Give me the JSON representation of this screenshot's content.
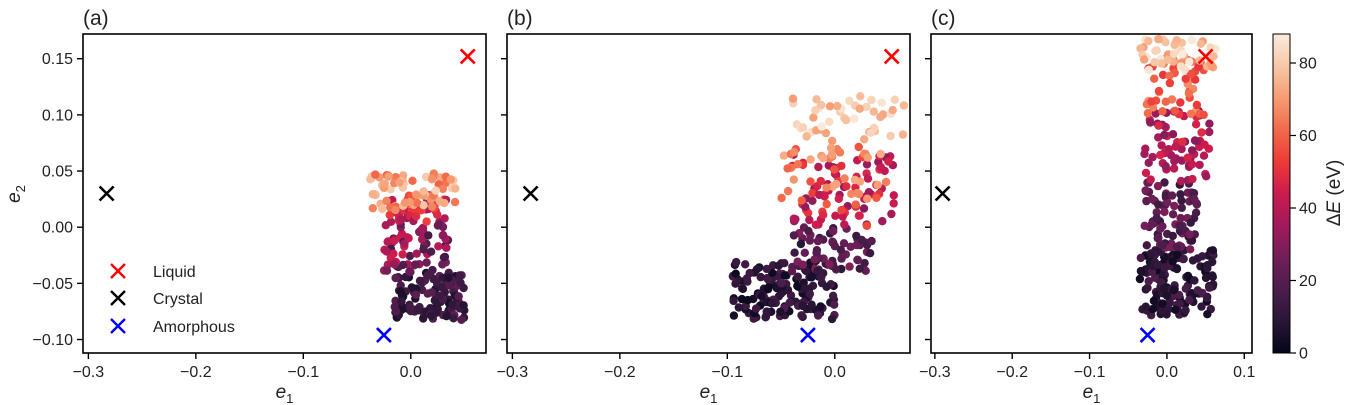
{
  "figure": {
    "colorbar": {
      "label": "ΔE (eV)",
      "label_symbol": "Δ",
      "label_italic": "E",
      "label_unit": " (eV)",
      "range": [
        0,
        88
      ],
      "ticks": [
        "0",
        "20",
        "40",
        "60",
        "80"
      ],
      "tick_values": [
        0,
        20,
        40,
        60,
        80
      ],
      "colormap": "rocket",
      "stops": [
        "#03051a",
        "#2a1636",
        "#4c1d4b",
        "#711f57",
        "#a11a5b",
        "#cb1b4f",
        "#ed3b37",
        "#f26a4a",
        "#f69c73",
        "#f7c8a8",
        "#faebdd"
      ]
    },
    "legend": [
      {
        "label": "Liquid",
        "color": "#ff0000"
      },
      {
        "label": "Crystal",
        "color": "#000000"
      },
      {
        "label": "Amorphous",
        "color": "#0000ff"
      }
    ]
  },
  "chart_data": [
    {
      "type": "scatter",
      "panel_label": "(a)",
      "xlabel": "e₁",
      "xlabel_main": "e",
      "xlabel_sub": "1",
      "ylabel": "e₂",
      "ylabel_main": "e",
      "ylabel_sub": "2",
      "xlim": [
        -0.305,
        0.07
      ],
      "ylim": [
        -0.112,
        0.172
      ],
      "xticks": [
        -0.3,
        -0.2,
        -0.1,
        0.0
      ],
      "xtick_labels": [
        "−0.3",
        "−0.2",
        "−0.1",
        "0.0"
      ],
      "yticks": [
        -0.1,
        -0.05,
        0.0,
        0.05,
        0.1,
        0.15
      ],
      "ytick_labels": [
        "−0.10",
        "−0.05",
        "0.00",
        "0.05",
        "0.10",
        "0.15"
      ],
      "grid": false,
      "markers": [
        {
          "name": "Liquid",
          "x": 0.053,
          "y": 0.152,
          "color": "#ff0000"
        },
        {
          "name": "Crystal",
          "x": -0.283,
          "y": 0.03,
          "color": "#000000"
        },
        {
          "name": "Amorphous",
          "x": -0.025,
          "y": -0.096,
          "color": "#0000ff"
        }
      ],
      "clusters": [
        {
          "x": [
            -0.015,
            0.05
          ],
          "y": [
            -0.083,
            -0.04
          ],
          "dE": [
            5,
            22
          ],
          "n": 110
        },
        {
          "x": [
            -0.025,
            0.035
          ],
          "y": [
            -0.04,
            0.005
          ],
          "dE": [
            15,
            45
          ],
          "n": 70
        },
        {
          "x": [
            -0.02,
            0.035
          ],
          "y": [
            0.005,
            0.03
          ],
          "dE": [
            35,
            60
          ],
          "n": 45
        },
        {
          "x": [
            -0.04,
            0.045
          ],
          "y": [
            0.015,
            0.048
          ],
          "dE": [
            58,
            82
          ],
          "n": 70
        }
      ]
    },
    {
      "type": "scatter",
      "panel_label": "(b)",
      "xlabel": "e₁",
      "xlabel_main": "e",
      "xlabel_sub": "1",
      "xlim": [
        -0.305,
        0.07
      ],
      "ylim": [
        -0.112,
        0.172
      ],
      "xticks": [
        -0.3,
        -0.2,
        -0.1,
        0.0
      ],
      "xtick_labels": [
        "−0.3",
        "−0.2",
        "−0.1",
        "0.0"
      ],
      "yticks": [
        -0.1,
        -0.05,
        0.0,
        0.05,
        0.1,
        0.15
      ],
      "grid": false,
      "markers": [
        {
          "name": "Liquid",
          "x": 0.053,
          "y": 0.152,
          "color": "#ff0000"
        },
        {
          "name": "Crystal",
          "x": -0.283,
          "y": 0.03,
          "color": "#000000"
        },
        {
          "name": "Amorphous",
          "x": -0.025,
          "y": -0.096,
          "color": "#0000ff"
        }
      ],
      "clusters": [
        {
          "x": [
            -0.095,
            0.0
          ],
          "y": [
            -0.082,
            -0.03
          ],
          "dE": [
            2,
            18
          ],
          "n": 150
        },
        {
          "x": [
            -0.04,
            0.035
          ],
          "y": [
            -0.04,
            0.0
          ],
          "dE": [
            8,
            30
          ],
          "n": 60
        },
        {
          "x": [
            -0.04,
            0.055
          ],
          "y": [
            0.0,
            0.065
          ],
          "dE": [
            30,
            55
          ],
          "n": 80
        },
        {
          "x": [
            -0.05,
            0.055
          ],
          "y": [
            0.02,
            0.08
          ],
          "dE": [
            55,
            75
          ],
          "n": 45
        },
        {
          "x": [
            -0.04,
            0.065
          ],
          "y": [
            0.08,
            0.12
          ],
          "dE": [
            70,
            88
          ],
          "n": 45
        }
      ]
    },
    {
      "type": "scatter",
      "panel_label": "(c)",
      "xlabel": "e₁",
      "xlabel_main": "e",
      "xlabel_sub": "1",
      "xlim": [
        -0.305,
        0.11
      ],
      "ylim": [
        -0.112,
        0.172
      ],
      "xticks": [
        -0.3,
        -0.2,
        -0.1,
        0.0,
        0.1
      ],
      "xtick_labels": [
        "−0.3",
        "−0.2",
        "−0.1",
        "0.0",
        "0.1"
      ],
      "yticks": [
        -0.1,
        -0.05,
        0.0,
        0.05,
        0.1,
        0.15
      ],
      "grid": false,
      "markers": [
        {
          "name": "Liquid",
          "x": 0.05,
          "y": 0.152,
          "color": "#ff0000"
        },
        {
          "name": "Crystal",
          "x": -0.29,
          "y": 0.03,
          "color": "#000000"
        },
        {
          "name": "Amorphous",
          "x": -0.025,
          "y": -0.096,
          "color": "#0000ff"
        }
      ],
      "clusters": [
        {
          "x": [
            -0.035,
            0.06
          ],
          "y": [
            -0.08,
            -0.02
          ],
          "dE": [
            2,
            18
          ],
          "n": 150
        },
        {
          "x": [
            -0.03,
            0.04
          ],
          "y": [
            -0.02,
            0.04
          ],
          "dE": [
            10,
            30
          ],
          "n": 80
        },
        {
          "x": [
            -0.03,
            0.055
          ],
          "y": [
            0.04,
            0.105
          ],
          "dE": [
            30,
            50
          ],
          "n": 70
        },
        {
          "x": [
            -0.03,
            0.05
          ],
          "y": [
            0.1,
            0.15
          ],
          "dE": [
            50,
            70
          ],
          "n": 50
        },
        {
          "x": [
            -0.035,
            0.065
          ],
          "y": [
            0.14,
            0.168
          ],
          "dE": [
            70,
            88
          ],
          "n": 45
        }
      ]
    }
  ]
}
